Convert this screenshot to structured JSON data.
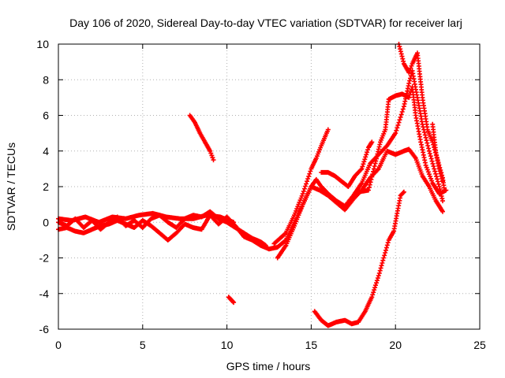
{
  "chart_data": {
    "type": "scatter",
    "title": "Day 106 of 2020, Sidereal Day-to-day VTEC variation (SDTVAR) for receiver larj",
    "xlabel": "GPS time / hours",
    "ylabel": "SDTVAR / TECUs",
    "xlim": [
      0,
      25
    ],
    "ylim": [
      -6,
      10
    ],
    "xticks": [
      0,
      5,
      10,
      15,
      20,
      25
    ],
    "yticks": [
      -6,
      -4,
      -2,
      0,
      2,
      4,
      6,
      8,
      10
    ],
    "grid": true,
    "marker": "+",
    "color": "#ff0000",
    "series": [
      {
        "points": [
          [
            0,
            0.0
          ],
          [
            0.5,
            -0.2
          ],
          [
            1,
            0.2
          ],
          [
            1.5,
            -0.3
          ],
          [
            2,
            0.1
          ],
          [
            2.5,
            -0.4
          ],
          [
            3,
            0.0
          ],
          [
            3.5,
            0.3
          ],
          [
            4,
            -0.2
          ],
          [
            4.5,
            0.1
          ],
          [
            5,
            -0.3
          ],
          [
            5.5,
            0.2
          ],
          [
            6,
            0.4
          ],
          [
            6.5,
            0.0
          ],
          [
            7,
            -0.3
          ],
          [
            7.5,
            0.2
          ],
          [
            8,
            0.4
          ],
          [
            8.5,
            0.3
          ],
          [
            9,
            0.6
          ],
          [
            9.5,
            0.2
          ],
          [
            10,
            0.0
          ],
          [
            10.5,
            -0.3
          ],
          [
            11,
            -0.6
          ],
          [
            11.5,
            -0.9
          ],
          [
            12,
            -1.1
          ],
          [
            12.3,
            -1.3
          ]
        ]
      },
      {
        "points": [
          [
            0,
            -0.4
          ],
          [
            0.5,
            -0.3
          ],
          [
            1,
            -0.5
          ],
          [
            1.5,
            -0.6
          ],
          [
            2,
            -0.4
          ],
          [
            2.5,
            -0.2
          ],
          [
            3,
            -0.1
          ],
          [
            3.5,
            0.1
          ],
          [
            4,
            -0.1
          ],
          [
            4.5,
            -0.3
          ],
          [
            5,
            0.1
          ],
          [
            5.5,
            -0.2
          ],
          [
            6,
            -0.6
          ],
          [
            6.5,
            -1.0
          ],
          [
            7,
            -0.6
          ],
          [
            7.5,
            -0.1
          ],
          [
            8,
            -0.3
          ],
          [
            8.5,
            -0.4
          ],
          [
            9,
            0.4
          ],
          [
            9.5,
            -0.1
          ],
          [
            10,
            0.3
          ]
        ]
      },
      {
        "points": [
          [
            0,
            0.2
          ],
          [
            0.8,
            0.1
          ],
          [
            1.6,
            0.3
          ],
          [
            2.4,
            0.0
          ],
          [
            3.2,
            0.3
          ],
          [
            4,
            0.2
          ],
          [
            4.8,
            0.4
          ],
          [
            5.6,
            0.5
          ],
          [
            6.4,
            0.3
          ],
          [
            7.2,
            0.2
          ],
          [
            8,
            0.2
          ],
          [
            8.8,
            0.4
          ],
          [
            9.6,
            0.3
          ],
          [
            10.4,
            0.0
          ]
        ]
      },
      {
        "points": [
          [
            10,
            0.3
          ],
          [
            10.5,
            -0.2
          ],
          [
            11,
            -0.8
          ],
          [
            11.5,
            -1.0
          ],
          [
            12,
            -1.3
          ],
          [
            12.5,
            -1.5
          ],
          [
            13,
            -1.4
          ],
          [
            13.5,
            -1.0
          ],
          [
            14,
            0.0
          ],
          [
            14.5,
            1.0
          ],
          [
            15,
            2.0
          ],
          [
            15.3,
            2.4
          ],
          [
            15.6,
            2.0
          ],
          [
            16,
            1.6
          ],
          [
            16.5,
            1.2
          ],
          [
            17,
            0.9
          ],
          [
            17.5,
            1.5
          ],
          [
            18,
            2.2
          ],
          [
            18.5,
            3.3
          ],
          [
            19,
            3.8
          ],
          [
            19.5,
            4.3
          ],
          [
            20,
            5.0
          ],
          [
            20.5,
            6.5
          ],
          [
            20.8,
            7.8
          ],
          [
            21,
            8.5
          ],
          [
            21.3,
            7.0
          ],
          [
            21.6,
            5.5
          ],
          [
            22,
            4.0
          ],
          [
            22.3,
            3.0
          ],
          [
            22.6,
            2.0
          ],
          [
            22.8,
            1.2
          ]
        ]
      },
      {
        "points": [
          [
            12.8,
            -1.2
          ],
          [
            13.5,
            -0.6
          ],
          [
            14,
            0.4
          ],
          [
            14.5,
            1.6
          ],
          [
            15,
            3.0
          ],
          [
            15.3,
            3.6
          ],
          [
            15.6,
            4.3
          ],
          [
            16,
            5.2
          ]
        ]
      },
      {
        "points": [
          [
            13,
            -2.0
          ],
          [
            13.5,
            -1.3
          ],
          [
            14,
            -0.2
          ],
          [
            14.5,
            1.0
          ],
          [
            15,
            2.0
          ],
          [
            15.5,
            1.8
          ],
          [
            16,
            1.5
          ],
          [
            16.5,
            1.1
          ],
          [
            17,
            0.7
          ],
          [
            17.5,
            1.3
          ],
          [
            18,
            1.8
          ],
          [
            18.5,
            2.5
          ],
          [
            19,
            3.0
          ],
          [
            19.5,
            4.0
          ],
          [
            20,
            3.8
          ],
          [
            20.5,
            4.0
          ],
          [
            20.8,
            4.1
          ],
          [
            21.2,
            3.6
          ],
          [
            21.6,
            2.6
          ],
          [
            22,
            2.0
          ],
          [
            22.4,
            1.2
          ],
          [
            22.8,
            0.6
          ]
        ]
      },
      {
        "points": [
          [
            15.6,
            2.8
          ],
          [
            16,
            2.8
          ],
          [
            16.4,
            2.6
          ],
          [
            16.8,
            2.3
          ],
          [
            17.2,
            2.0
          ],
          [
            17.6,
            2.6
          ],
          [
            18,
            3.0
          ],
          [
            18.4,
            4.2
          ],
          [
            18.6,
            4.5
          ]
        ]
      },
      {
        "points": [
          [
            17.8,
            1.7
          ],
          [
            18.4,
            1.8
          ],
          [
            18.8,
            3.3
          ],
          [
            19.1,
            4.5
          ],
          [
            19.4,
            5.2
          ],
          [
            19.6,
            6.9
          ],
          [
            20,
            7.1
          ],
          [
            20.4,
            7.2
          ],
          [
            20.8,
            7.0
          ],
          [
            21,
            7.6
          ],
          [
            21.2,
            6.0
          ],
          [
            21.5,
            4.5
          ],
          [
            21.8,
            3.2
          ],
          [
            22.2,
            2.2
          ],
          [
            22.6,
            1.6
          ],
          [
            23,
            1.8
          ]
        ]
      },
      {
        "points": [
          [
            20.2,
            10.0
          ],
          [
            20.5,
            8.9
          ],
          [
            20.8,
            8.4
          ],
          [
            21,
            8.9
          ],
          [
            21.3,
            9.5
          ],
          [
            21.6,
            7.0
          ],
          [
            21.9,
            5.2
          ],
          [
            22.2,
            4.5
          ],
          [
            22.5,
            3.5
          ],
          [
            22.8,
            2.5
          ],
          [
            22.9,
            1.8
          ]
        ]
      },
      {
        "points": [
          [
            22.2,
            5.5
          ],
          [
            22.4,
            3.9
          ],
          [
            22.6,
            3.0
          ],
          [
            22.8,
            2.3
          ]
        ]
      },
      {
        "points": [
          [
            15.2,
            -5.0
          ],
          [
            15.6,
            -5.5
          ],
          [
            16,
            -5.8
          ],
          [
            16.5,
            -5.6
          ],
          [
            17,
            -5.5
          ],
          [
            17.4,
            -5.7
          ],
          [
            17.8,
            -5.6
          ],
          [
            18.2,
            -5.0
          ],
          [
            18.6,
            -4.2
          ],
          [
            19,
            -3.0
          ],
          [
            19.3,
            -2.0
          ],
          [
            19.6,
            -1.0
          ],
          [
            19.9,
            -0.5
          ],
          [
            20.1,
            0.5
          ],
          [
            20.3,
            1.5
          ],
          [
            20.5,
            1.7
          ]
        ]
      },
      {
        "points": [
          [
            7.8,
            6.0
          ],
          [
            8.1,
            5.6
          ],
          [
            8.4,
            5.0
          ],
          [
            8.7,
            4.5
          ],
          [
            9.0,
            4.0
          ],
          [
            9.2,
            3.5
          ]
        ]
      },
      {
        "points": [
          [
            10.1,
            -4.2
          ],
          [
            10.4,
            -4.5
          ]
        ]
      }
    ]
  }
}
